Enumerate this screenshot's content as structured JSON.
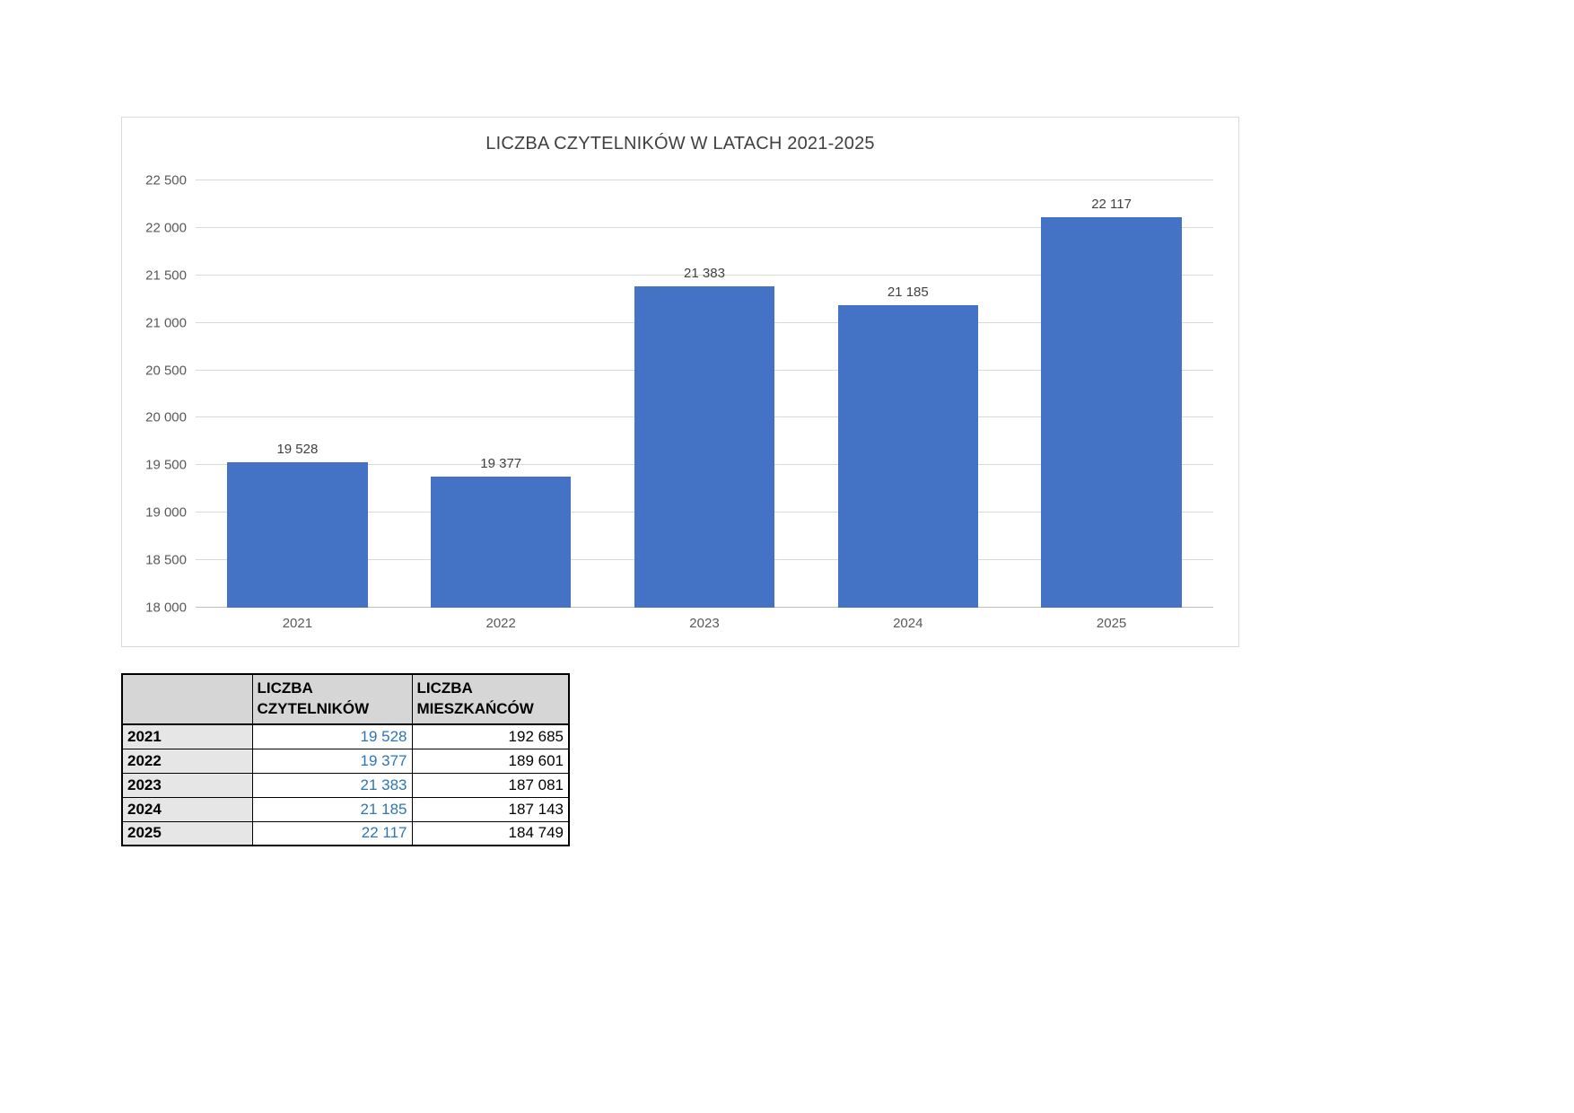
{
  "chart_data": {
    "type": "bar",
    "title": "LICZBA CZYTELNIKÓW W LATACH 2021-2025",
    "categories": [
      "2021",
      "2022",
      "2023",
      "2024",
      "2025"
    ],
    "values": [
      19528,
      19377,
      21383,
      21185,
      22117
    ],
    "value_labels": [
      "19 528",
      "19 377",
      "21 383",
      "21 185",
      "22 117"
    ],
    "xlabel": "",
    "ylabel": "",
    "ylim": [
      18000,
      22500
    ],
    "ytick_step": 500,
    "ytick_labels": [
      "18 000",
      "18 500",
      "19 000",
      "19 500",
      "20 000",
      "20 500",
      "21 000",
      "21 500",
      "22 000",
      "22 500"
    ],
    "grid": true,
    "legend": "none",
    "bar_color": "#4472C4"
  },
  "table": {
    "headers": [
      "",
      "LICZBA CZYTELNIKÓW",
      "LICZBA MIESZKAŃCÓW"
    ],
    "rows": [
      {
        "year": "2021",
        "readers": "19 528",
        "residents": "192 685"
      },
      {
        "year": "2022",
        "readers": "19 377",
        "residents": "189 601"
      },
      {
        "year": "2023",
        "readers": "21 383",
        "residents": "187 081"
      },
      {
        "year": "2024",
        "readers": "21 185",
        "residents": "187 143"
      },
      {
        "year": "2025",
        "readers": "22 117",
        "residents": "184 749"
      }
    ]
  },
  "colors": {
    "bar": "#4472C4",
    "readers_text": "#2E75B6",
    "grid_line": "#D9D9D9",
    "axis_line": "#BFBFBF",
    "chart_border": "#D9D9D9",
    "title_text": "#404040",
    "tick_text": "#595959",
    "table_header_bg": "#D6D6D6",
    "table_year_bg": "#E7E6E6",
    "table_border": "#000000"
  }
}
